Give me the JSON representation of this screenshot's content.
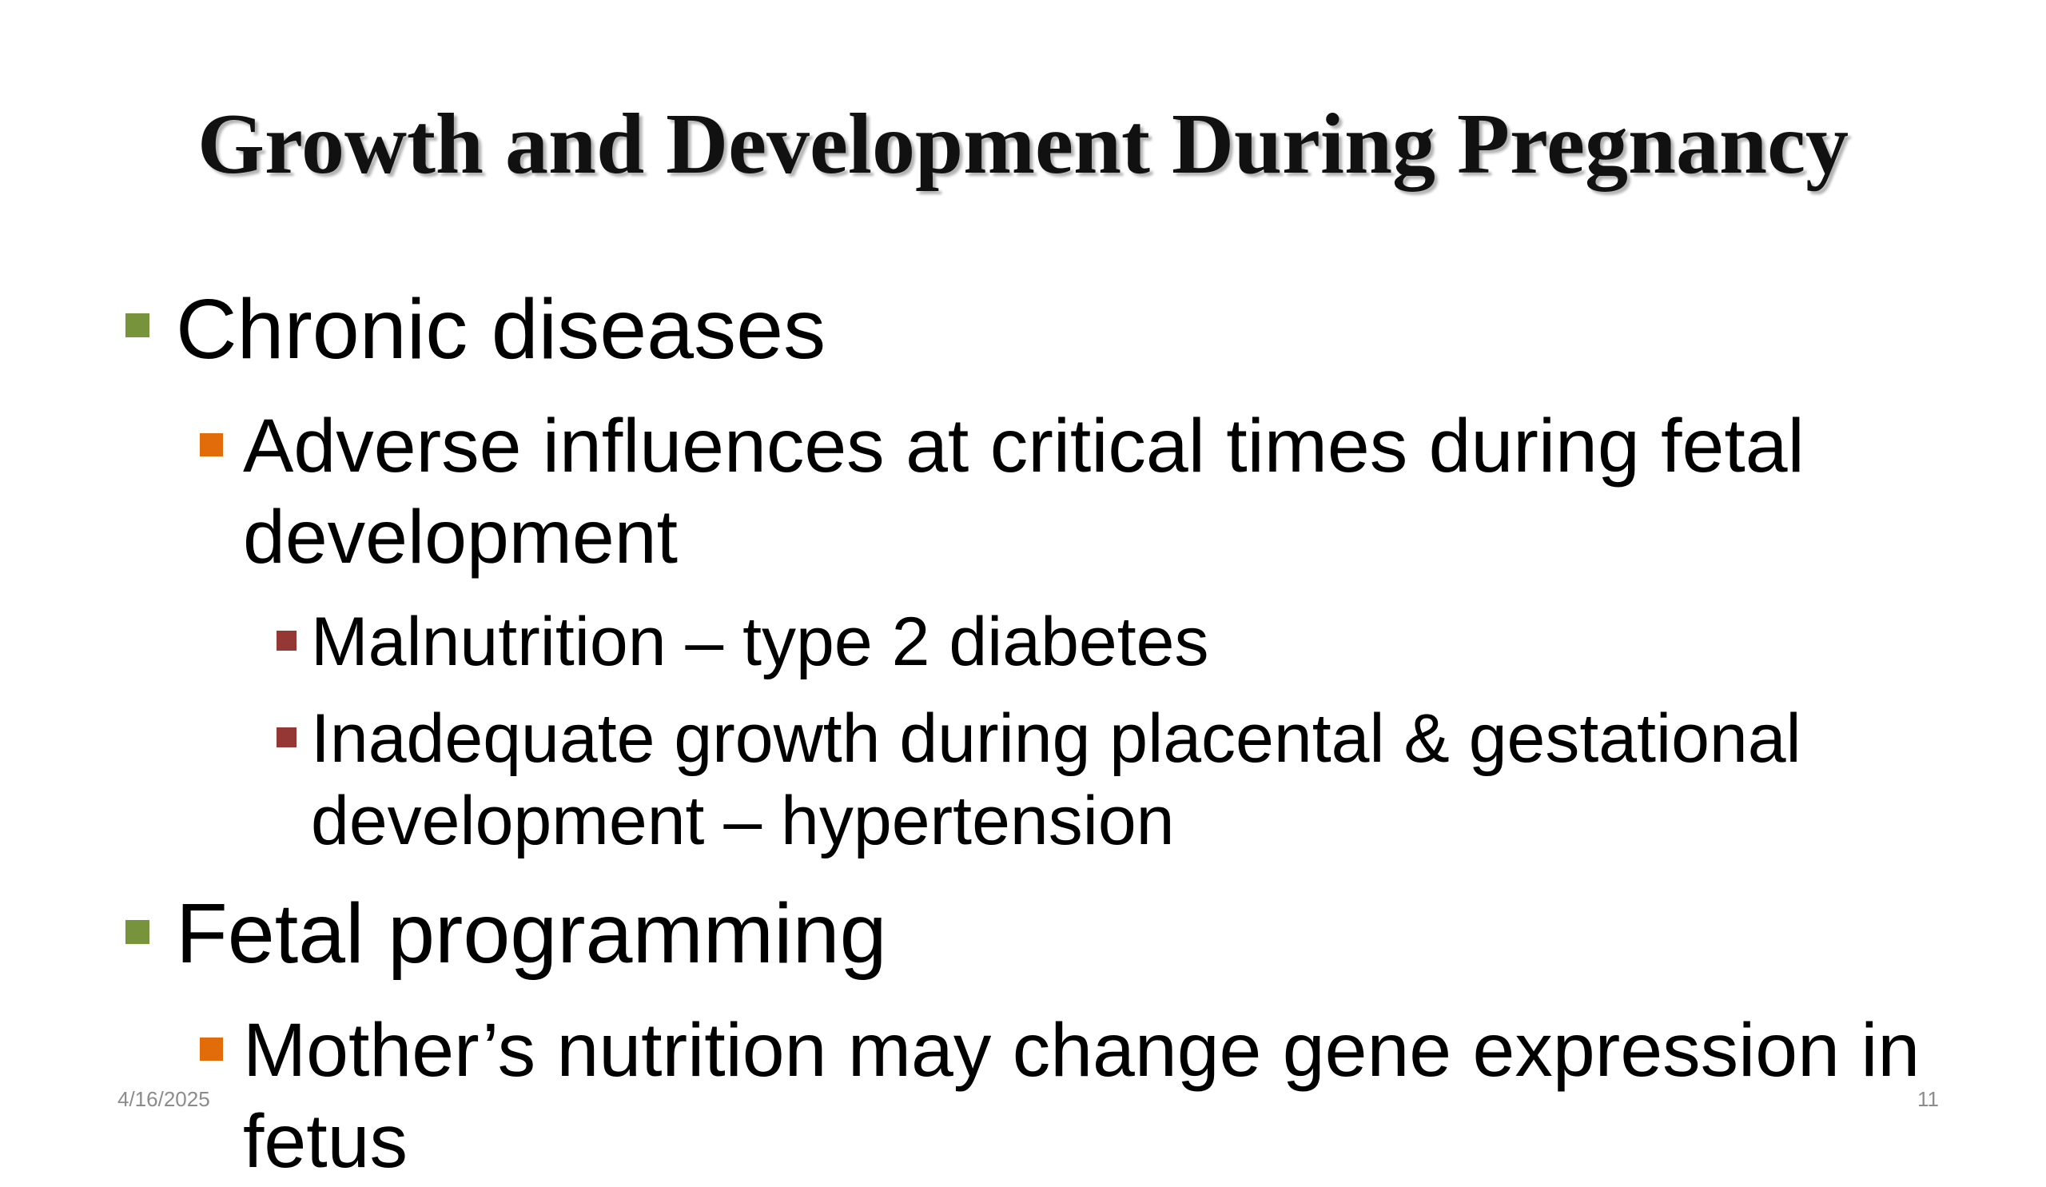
{
  "title": "Growth and Development During Pregnancy",
  "bullets": [
    {
      "text": "Chronic diseases",
      "children": [
        {
          "text": "Adverse influences at critical times during fetal development",
          "children": [
            {
              "text": "Malnutrition – type 2 diabetes"
            },
            {
              "text": "Inadequate growth during placental & gestational development – hypertension"
            }
          ]
        }
      ]
    },
    {
      "text": "Fetal programming",
      "children": [
        {
          "text": "Mother’s nutrition may change gene expression in fetus"
        }
      ]
    }
  ],
  "footer": {
    "date": "4/16/2025",
    "page": "11"
  }
}
